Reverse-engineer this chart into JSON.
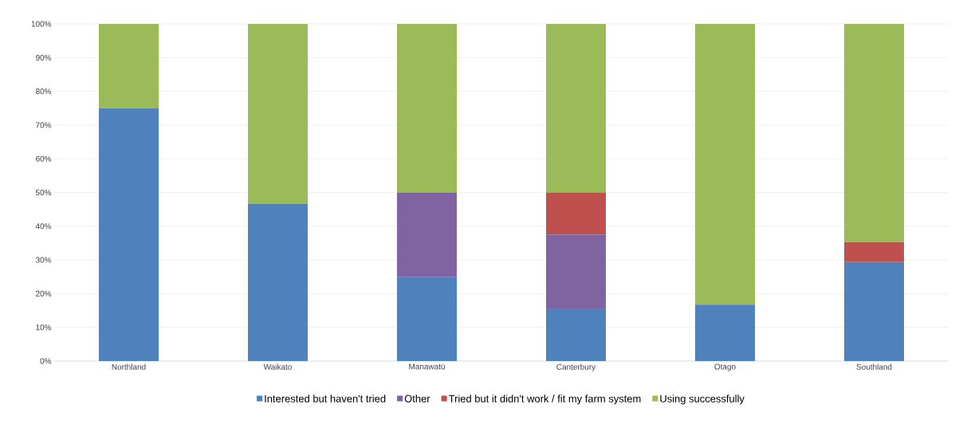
{
  "chart_data": {
    "type": "bar",
    "stacked": true,
    "categories": [
      "Northland",
      "Waikato",
      "Manawatū",
      "Canterbury",
      "Otago",
      "Southland"
    ],
    "series": [
      {
        "name": "Interested but haven't tried",
        "color": "#4f81bd",
        "values": [
          75,
          46.7,
          25,
          15.6,
          16.7,
          29.4
        ]
      },
      {
        "name": "Other",
        "color": "#8064a2",
        "values": [
          0,
          0,
          25,
          21.9,
          0,
          0
        ]
      },
      {
        "name": "Tried but it didn't work / fit my farm system",
        "color": "#c0504d",
        "values": [
          0,
          0,
          0,
          12.5,
          0,
          5.9
        ]
      },
      {
        "name": "Using successfully",
        "color": "#9bbb59",
        "values": [
          25,
          53.3,
          50,
          50,
          83.3,
          64.7
        ]
      }
    ],
    "ylim": [
      0,
      100
    ],
    "yticks": [
      {
        "value": 0,
        "label": "0%"
      },
      {
        "value": 10,
        "label": "10%"
      },
      {
        "value": 20,
        "label": "20%"
      },
      {
        "value": 30,
        "label": "30%"
      },
      {
        "value": 40,
        "label": "40%"
      },
      {
        "value": 50,
        "label": "50%"
      },
      {
        "value": 60,
        "label": "60%"
      },
      {
        "value": 70,
        "label": "70%"
      },
      {
        "value": 80,
        "label": "80%"
      },
      {
        "value": 90,
        "label": "90%"
      },
      {
        "value": 100,
        "label": "100%"
      }
    ],
    "grid": "y",
    "legend": "bottom"
  }
}
